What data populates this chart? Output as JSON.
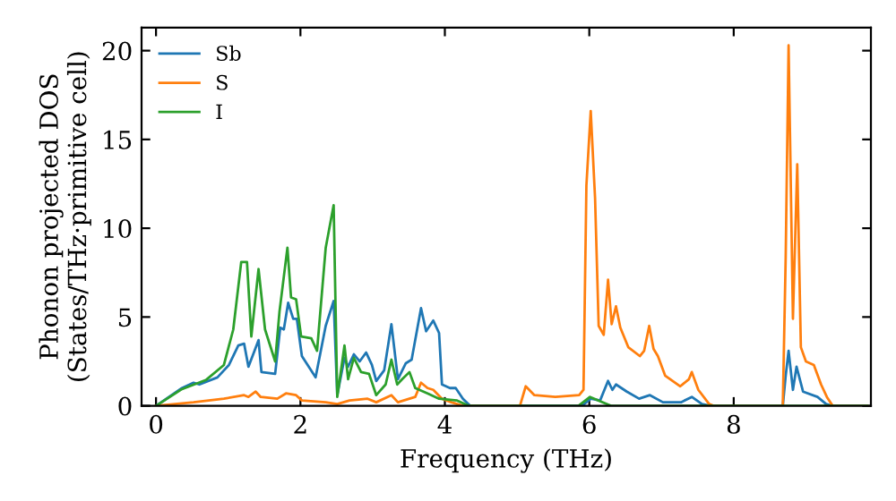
{
  "chart_data": {
    "type": "line",
    "xlabel": "Frequency (THz)",
    "ylabel": "Phonon projected DOS\n(States/THz·primitive cell)",
    "xlim": [
      -0.2,
      9.9
    ],
    "ylim": [
      0,
      21.3
    ],
    "xticks": [
      0,
      2,
      4,
      6,
      8
    ],
    "yticks": [
      0,
      5,
      10,
      15,
      20
    ],
    "legend": "top left",
    "grid": false,
    "marker": "none",
    "line_style": "solid",
    "series": [
      {
        "name": "Sb",
        "color": "#1f77b4",
        "x": [
          0,
          0.36,
          0.52,
          0.6,
          0.85,
          1.01,
          1.14,
          1.22,
          1.28,
          1.42,
          1.46,
          1.65,
          1.72,
          1.77,
          1.83,
          1.9,
          1.95,
          2.02,
          2.21,
          2.35,
          2.46,
          2.51,
          2.61,
          2.66,
          2.74,
          2.82,
          2.91,
          2.99,
          3.05,
          3.16,
          3.26,
          3.35,
          3.46,
          3.54,
          3.67,
          3.74,
          3.84,
          3.92,
          3.96,
          4.07,
          4.15,
          4.25,
          4.35,
          5.9,
          6.02,
          6.15,
          6.26,
          6.32,
          6.37,
          6.52,
          6.69,
          6.84,
          7.02,
          7.27,
          7.42,
          7.56,
          7.68,
          8.68,
          8.72,
          8.76,
          8.82,
          8.87,
          8.96,
          9.16,
          9.28,
          9.36,
          9.85
        ],
        "values": [
          0,
          1.0,
          1.3,
          1.2,
          1.6,
          2.3,
          3.4,
          3.5,
          2.2,
          3.7,
          1.9,
          1.8,
          4.4,
          4.3,
          5.8,
          4.9,
          4.9,
          2.8,
          1.6,
          4.5,
          5.9,
          0.6,
          2.7,
          2.2,
          2.9,
          2.5,
          3.0,
          2.3,
          1.4,
          2.0,
          4.6,
          1.5,
          2.4,
          2.6,
          5.5,
          4.2,
          4.8,
          4.1,
          1.2,
          1.0,
          1.0,
          0.4,
          0,
          0,
          0.4,
          0.3,
          1.4,
          0.9,
          1.2,
          0.8,
          0.4,
          0.6,
          0.2,
          0.2,
          0.5,
          0.1,
          0,
          0,
          1.7,
          3.1,
          0.9,
          2.2,
          0.8,
          0.5,
          0.1,
          0,
          0
        ]
      },
      {
        "name": "S",
        "color": "#ff7f0e",
        "x": [
          0,
          0.52,
          0.94,
          1.22,
          1.28,
          1.38,
          1.45,
          1.68,
          1.8,
          1.94,
          2.02,
          2.35,
          2.51,
          2.68,
          2.93,
          3.05,
          3.26,
          3.35,
          3.59,
          3.67,
          3.76,
          3.84,
          3.96,
          4.09,
          4.25,
          5.04,
          5.12,
          5.24,
          5.53,
          5.86,
          5.92,
          5.96,
          6.02,
          6.08,
          6.13,
          6.2,
          6.26,
          6.31,
          6.37,
          6.43,
          6.54,
          6.7,
          6.76,
          6.83,
          6.89,
          6.95,
          7.05,
          7.26,
          7.38,
          7.42,
          7.51,
          7.66,
          7.72,
          8.68,
          8.72,
          8.76,
          8.82,
          8.88,
          8.93,
          9.0,
          9.11,
          9.21,
          9.29,
          9.37,
          9.85
        ],
        "values": [
          0,
          0.2,
          0.4,
          0.6,
          0.5,
          0.8,
          0.5,
          0.4,
          0.7,
          0.6,
          0.3,
          0.2,
          0.1,
          0.3,
          0.4,
          0.2,
          0.6,
          0.2,
          0.5,
          1.3,
          1.0,
          0.9,
          0.4,
          0.2,
          0,
          0,
          1.1,
          0.6,
          0.5,
          0.6,
          0.9,
          12.4,
          16.6,
          11.7,
          4.5,
          4.0,
          7.1,
          4.6,
          5.6,
          4.4,
          3.3,
          2.8,
          3.1,
          4.5,
          3.2,
          2.8,
          1.7,
          1.1,
          1.5,
          1.9,
          0.9,
          0.1,
          0,
          0,
          8.4,
          20.3,
          4.9,
          13.6,
          3.3,
          2.5,
          2.3,
          1.2,
          0.5,
          0,
          0
        ]
      },
      {
        "name": "I",
        "color": "#2ca02c",
        "x": [
          0,
          0.36,
          0.69,
          0.94,
          1.07,
          1.18,
          1.26,
          1.32,
          1.42,
          1.51,
          1.65,
          1.71,
          1.82,
          1.87,
          1.94,
          2.01,
          2.15,
          2.23,
          2.35,
          2.46,
          2.51,
          2.61,
          2.66,
          2.74,
          2.84,
          2.95,
          3.05,
          3.18,
          3.26,
          3.34,
          3.41,
          3.51,
          3.59,
          3.76,
          3.92,
          4.17,
          4.33,
          5.85,
          6.01,
          6.3,
          9.85
        ],
        "values": [
          0,
          0.94,
          1.45,
          2.3,
          4.3,
          8.1,
          8.1,
          3.9,
          7.7,
          4.3,
          2.5,
          5.3,
          8.9,
          6.1,
          6.0,
          3.9,
          3.8,
          3.1,
          8.9,
          11.3,
          0.5,
          3.4,
          1.5,
          2.7,
          1.9,
          1.8,
          0.6,
          1.2,
          2.6,
          1.2,
          1.5,
          1.9,
          1.0,
          0.7,
          0.4,
          0.3,
          0,
          0,
          0.5,
          0,
          0
        ]
      }
    ]
  }
}
